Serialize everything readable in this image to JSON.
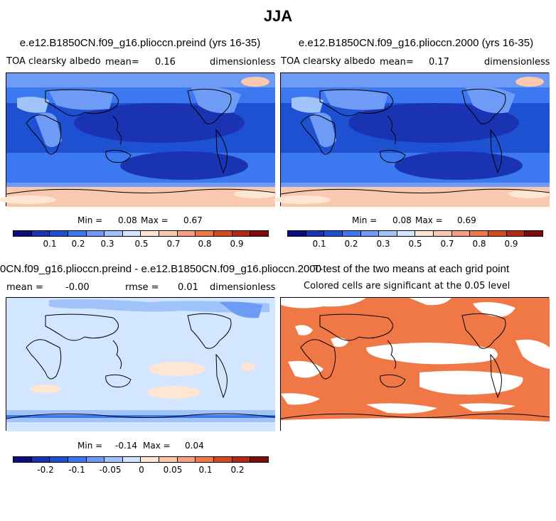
{
  "page_title": "JJA",
  "colors": {
    "diverging": [
      "#0c0c80",
      "#1a33b3",
      "#1e50d2",
      "#3c78f0",
      "#6e9bf5",
      "#a0c3fa",
      "#d2e6ff",
      "#ffe6d2",
      "#fac8af",
      "#f5a082",
      "#f07846",
      "#d24b1e",
      "#b42814",
      "#7d0c0a"
    ]
  },
  "panels": [
    {
      "title": "e.e12.B1850CN.f09_g16.plioccn.preind (yrs 16-35)",
      "variable": "TOA clearsky albedo",
      "mean_label": "mean=",
      "mean_value": "0.16",
      "units": "dimensionless",
      "min_label": "Min =",
      "min_value": "0.08",
      "max_label": "Max =",
      "max_value": "0.67",
      "colorbar_ticks": [
        "0.1",
        "0.2",
        "0.3",
        "0.5",
        "0.7",
        "0.8",
        "0.9"
      ]
    },
    {
      "title": "e.e12.B1850CN.f09_g16.plioccn.2000 (yrs 16-35)",
      "variable": "TOA clearsky albedo",
      "mean_label": "mean=",
      "mean_value": "0.17",
      "units": "dimensionless",
      "min_label": "Min =",
      "min_value": "0.08",
      "max_label": "Max =",
      "max_value": "0.69",
      "colorbar_ticks": [
        "0.1",
        "0.2",
        "0.3",
        "0.5",
        "0.7",
        "0.8",
        "0.9"
      ]
    },
    {
      "title": "0CN.f09_g16.plioccn.preind - e.e12.B1850CN.f09_g16.plioccn.2000",
      "mean_label": "mean =",
      "mean_value": "-0.00",
      "rmse_label": "rmse =",
      "rmse_value": "0.01",
      "units": "dimensionless",
      "min_label": "Min =",
      "min_value": "-0.14",
      "max_label": "Max =",
      "max_value": "0.04",
      "colorbar_ticks": [
        "-0.2",
        "-0.1",
        "-0.05",
        "0",
        "0.05",
        "0.1",
        "0.2"
      ]
    },
    {
      "title": "T-test of the two means at each grid point",
      "subtitle": "Colored cells are significant at the 0.05 level"
    }
  ]
}
